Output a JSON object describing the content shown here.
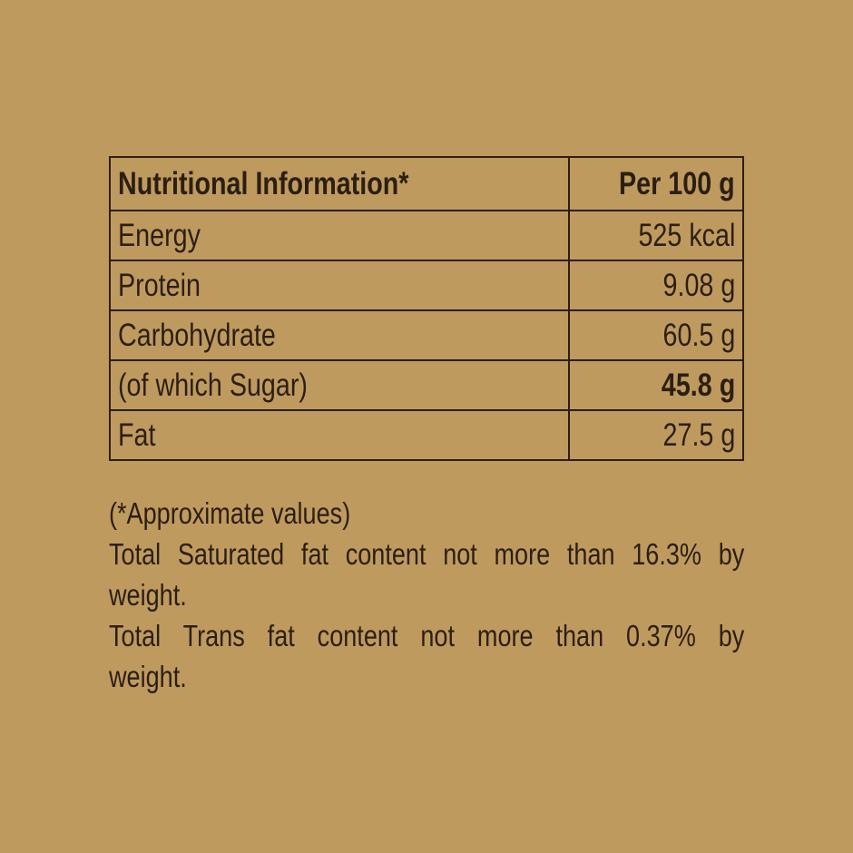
{
  "table": {
    "header": {
      "label": "Nutritional Information*",
      "value": "Per 100 g"
    },
    "rows": [
      {
        "label": "Energy",
        "value": "525 kcal"
      },
      {
        "label": "Protein",
        "value": "9.08 g"
      },
      {
        "label": "Carbohydrate",
        "value": "60.5 g"
      },
      {
        "label": "(of which Sugar)",
        "value": "45.8 g"
      },
      {
        "label": "Fat",
        "value": "27.5 g"
      }
    ]
  },
  "notes": {
    "approx": "(*Approximate values)",
    "sat_line1": "Total Saturated fat content not more than 16.3% by",
    "sat_line2": "weight.",
    "trans_line1": "Total Trans fat content not more than 0.37% by",
    "trans_line2": "weight."
  },
  "colors": {
    "background": "#bf9a5f",
    "text": "#2b1f12"
  }
}
